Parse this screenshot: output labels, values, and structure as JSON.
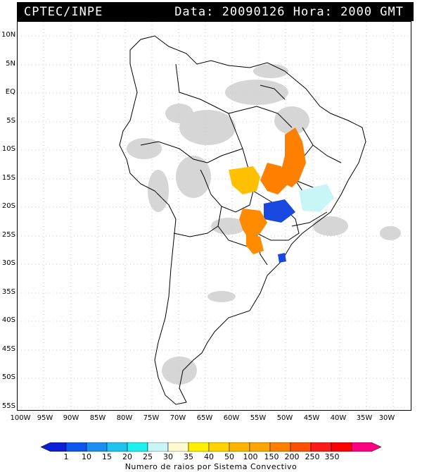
{
  "header": {
    "source": "CPTEC/INPE",
    "datetime": "Data: 20090126 Hora: 2000 GMT"
  },
  "map": {
    "lat_labels": [
      "10N",
      "5N",
      "EQ",
      "5S",
      "10S",
      "15S",
      "20S",
      "25S",
      "30S",
      "35S",
      "40S",
      "45S",
      "50S",
      "55S"
    ],
    "lon_labels": [
      "100W",
      "95W",
      "90W",
      "85W",
      "80W",
      "75W",
      "70W",
      "65W",
      "60W",
      "55W",
      "50W",
      "45W",
      "40W",
      "35W",
      "30W"
    ],
    "colors": {
      "land_outline": "#000000",
      "cloud_gray": "#c8c8c8",
      "grid": "#888888"
    }
  },
  "colorbar": {
    "title": "Numero de raios por Sistema Convectivo",
    "labels": [
      "1",
      "10",
      "15",
      "20",
      "25",
      "30",
      "35",
      "40",
      "50",
      "100",
      "150",
      "200",
      "250",
      "350"
    ],
    "colors": [
      "#0b1fd6",
      "#0d56f0",
      "#1a8ff2",
      "#1fc3ef",
      "#1ef0f0",
      "#c8f5f5",
      "#fffacd",
      "#fff000",
      "#ffd200",
      "#ffa500",
      "#ff7f00",
      "#ff4f00",
      "#ff1a1a",
      "#ff0080"
    ]
  }
}
